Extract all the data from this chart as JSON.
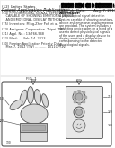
{
  "bg_color": "#f0f0f0",
  "page_bg": "#ffffff",
  "text_color": "#333333",
  "header_left1": "(12) United States",
  "header_left2": "Patent Application Publication",
  "header_right1": "(10) Pub. No.:  US 2013/0204342 A1",
  "header_right2": "(43) Pub. Date:       Aug. 7, 2013",
  "section54": "(54) PHYSIOLOGICAL SIGNAL DETECTION SYSTEM",
  "section54b": "       CAPABLE OF SHOWING EMOTIONS, DEVICE",
  "section54c": "       AND EMOTIONAL DISPLAY METHOD",
  "inventors_label": "(75) Inventors:",
  "inventors_val": "Ming-Zher Poh, Flushing, NY (US)",
  "assignee_label": "(73) Assignee:",
  "assignee_val": "Massachusetts Institute of",
  "appl_label": "(21) Appl. No.:",
  "appl_val": "13/766,948",
  "filed_label": "(22) Filed:",
  "filed_val": "Feb. 14, 2013",
  "foreign_label": "(30) Foreign Application Priority Data",
  "fig_label": "FIG. 1",
  "abstract_title": "ABSTRACT",
  "abstract_body": "A physiological signal detection system capable of showing emotions, device and emotional display method are provided. The system includes a detecting device worn on a hand of a user to detect physiological signals of the user, and a display device to display emotional information corresponding to the detected physiological signals.",
  "ref_numbers": [
    "100",
    "110",
    "120",
    "130",
    "200",
    "210",
    "220",
    "230"
  ],
  "device_border": "#555555",
  "hand_color": "#d8d8d8",
  "hand_edge": "#555555",
  "panel_color": "#e8e8e8",
  "panel_edge": "#555555",
  "btn_color": "#cccccc",
  "btn_edge": "#444444",
  "wrist_color": "#bbbbbb",
  "wrist_edge": "#555555"
}
